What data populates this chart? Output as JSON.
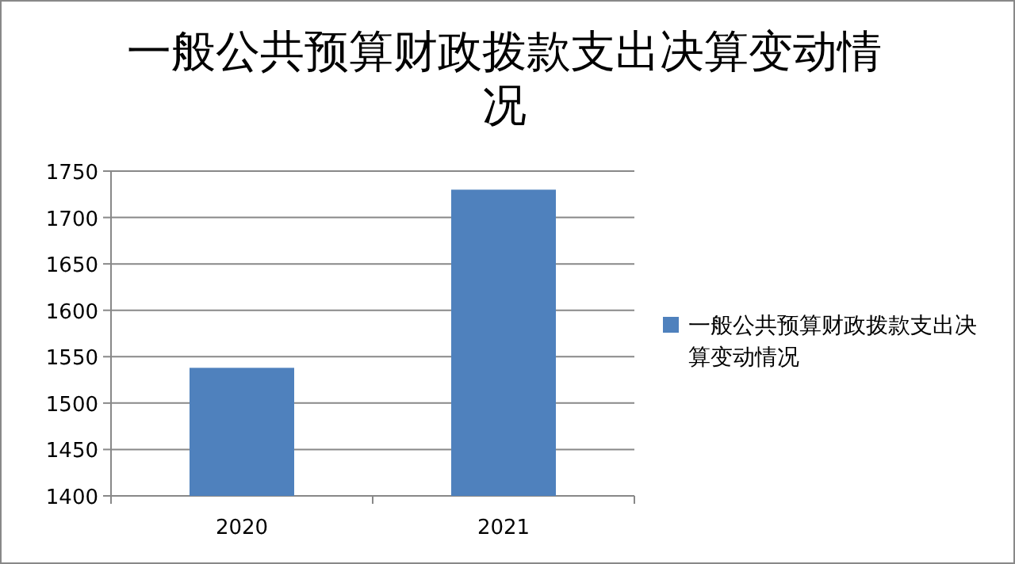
{
  "chart_data": {
    "type": "bar",
    "title": "一般公共预算财政拨款支出决算变动情况",
    "categories": [
      "2020",
      "2021"
    ],
    "series": [
      {
        "name": "一般公共预算财政拨款支出决算变动情况",
        "color": "#4f81bd",
        "values": [
          1538,
          1730
        ]
      }
    ],
    "ylim": [
      1400,
      1750
    ],
    "yticks": [
      1400,
      1450,
      1500,
      1550,
      1600,
      1650,
      1700,
      1750
    ],
    "grid": "y",
    "legend": "right"
  }
}
